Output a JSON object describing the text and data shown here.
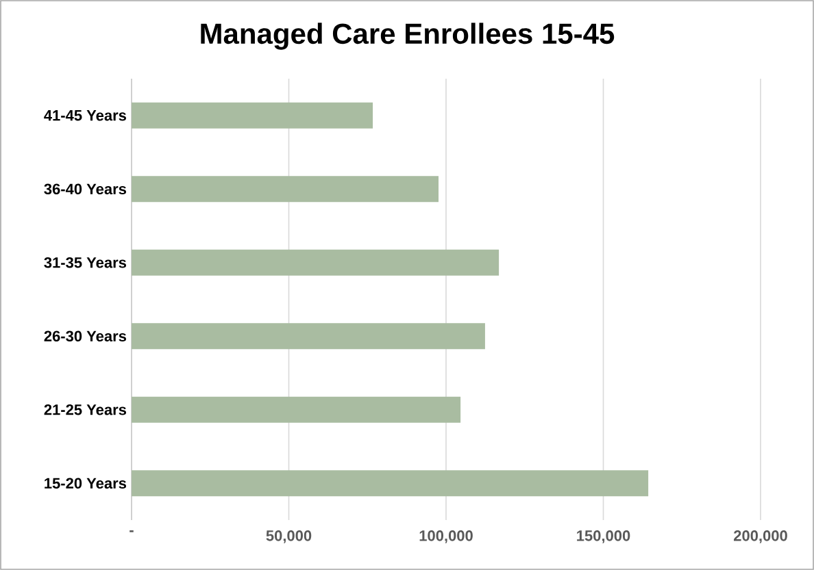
{
  "chart_data": {
    "type": "bar",
    "orientation": "horizontal",
    "title": "Managed Care Enrollees 15-45",
    "categories": [
      "41-45 Years",
      "36-40 Years",
      "31-35 Years",
      "26-30 Years",
      "21-25 Years",
      "15-20 Years"
    ],
    "values": [
      76700,
      97600,
      116800,
      112400,
      104600,
      164300
    ],
    "color": "#a9bca1",
    "xlim": [
      0,
      200000
    ],
    "xticks": [
      {
        "value": 0,
        "label": "-"
      },
      {
        "value": 50000,
        "label": "50,000"
      },
      {
        "value": 100000,
        "label": "100,000"
      },
      {
        "value": 150000,
        "label": "150,000"
      },
      {
        "value": 200000,
        "label": "200,000"
      }
    ],
    "grid": "x"
  }
}
